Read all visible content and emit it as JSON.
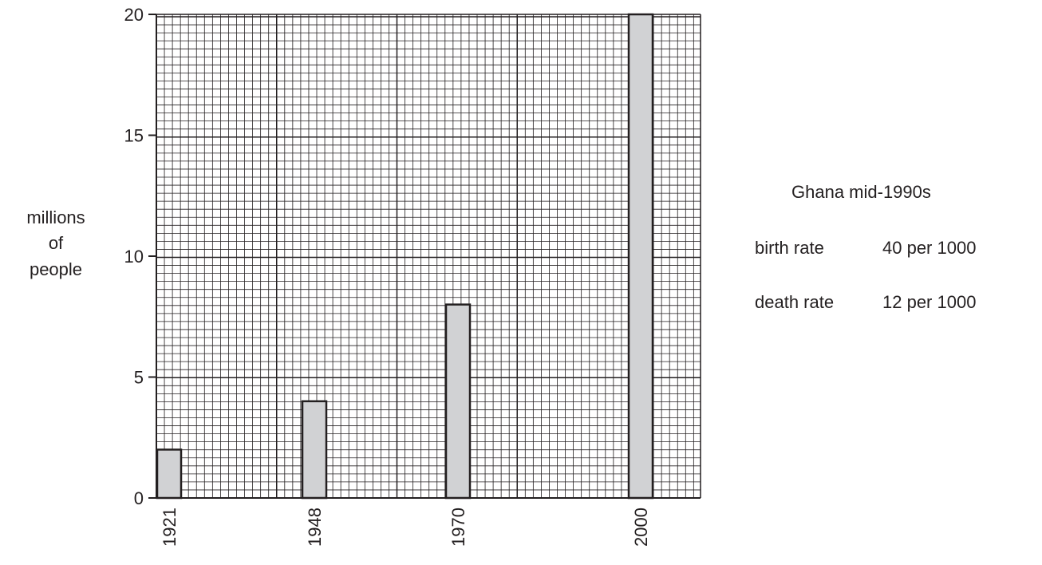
{
  "chart_data": {
    "type": "bar",
    "categories": [
      "1921",
      "1948",
      "1970",
      "2000"
    ],
    "values": [
      2,
      4,
      8,
      20
    ],
    "ylabel_lines": [
      "millions",
      "of",
      "people"
    ],
    "xlabel": "",
    "ylim": [
      0,
      20
    ],
    "yticks": [
      0,
      5,
      10,
      15,
      20
    ],
    "grid": true,
    "bar_color": "#d1d2d4"
  },
  "info": {
    "title": "Ghana mid-1990s",
    "rows": [
      {
        "label": "birth rate",
        "value": "40 per 1000"
      },
      {
        "label": "death rate",
        "value": "12 per 1000"
      }
    ]
  }
}
